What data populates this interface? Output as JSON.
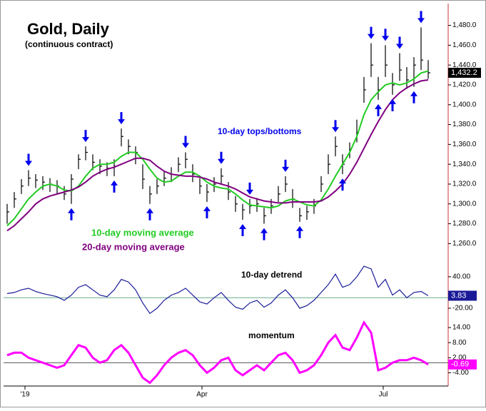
{
  "chart_data": [
    {
      "type": "ohlc",
      "title": "Gold, Daily",
      "subtitle": "(continuous contract)",
      "annotation": "10-day tops/bottoms",
      "high": [
        1300,
        1312,
        1325,
        1334,
        1330,
        1328,
        1326,
        1324,
        1318,
        1330,
        1350,
        1358,
        1350,
        1345,
        1342,
        1345,
        1376,
        1365,
        1358,
        1340,
        1318,
        1325,
        1333,
        1337,
        1347,
        1352,
        1340,
        1326,
        1320,
        1327,
        1336,
        1322,
        1308,
        1300,
        1305,
        1306,
        1296,
        1305,
        1318,
        1328,
        1315,
        1296,
        1298,
        1305,
        1328,
        1350,
        1368,
        1350,
        1362,
        1385,
        1428,
        1462,
        1428,
        1460,
        1432,
        1452,
        1438,
        1448,
        1478,
        1445
      ],
      "low": [
        1280,
        1296,
        1310,
        1318,
        1316,
        1314,
        1312,
        1310,
        1304,
        1300,
        1335,
        1344,
        1334,
        1330,
        1328,
        1328,
        1358,
        1350,
        1340,
        1315,
        1300,
        1310,
        1318,
        1322,
        1332,
        1336,
        1322,
        1310,
        1302,
        1312,
        1320,
        1304,
        1292,
        1284,
        1290,
        1292,
        1280,
        1290,
        1302,
        1312,
        1296,
        1282,
        1284,
        1290,
        1312,
        1330,
        1348,
        1330,
        1346,
        1362,
        1402,
        1428,
        1405,
        1428,
        1410,
        1424,
        1416,
        1418,
        1435,
        1426
      ],
      "close": [
        1292,
        1305,
        1318,
        1326,
        1324,
        1322,
        1320,
        1318,
        1310,
        1325,
        1345,
        1352,
        1342,
        1338,
        1336,
        1338,
        1368,
        1358,
        1352,
        1325,
        1310,
        1318,
        1326,
        1330,
        1340,
        1345,
        1330,
        1318,
        1312,
        1320,
        1328,
        1312,
        1300,
        1294,
        1298,
        1300,
        1288,
        1298,
        1310,
        1320,
        1305,
        1288,
        1292,
        1298,
        1320,
        1340,
        1358,
        1340,
        1355,
        1372,
        1415,
        1440,
        1415,
        1440,
        1420,
        1435,
        1425,
        1440,
        1445,
        1432.2
      ],
      "bar_color": "#000000",
      "series": [
        {
          "name": "10-day moving average",
          "color": "#22cc22",
          "values": [
            1278,
            1285,
            1295,
            1305,
            1312,
            1318,
            1320,
            1318,
            1314,
            1313,
            1318,
            1328,
            1336,
            1340,
            1340,
            1342,
            1348,
            1352,
            1352,
            1345,
            1335,
            1326,
            1322,
            1323,
            1328,
            1332,
            1332,
            1328,
            1322,
            1318,
            1316,
            1315,
            1310,
            1304,
            1299,
            1298,
            1297,
            1296,
            1298,
            1303,
            1305,
            1302,
            1299,
            1298,
            1304,
            1315,
            1328,
            1340,
            1352,
            1368,
            1390,
            1405,
            1413,
            1420,
            1422,
            1420,
            1422,
            1426,
            1432,
            1434
          ]
        },
        {
          "name": "20-day moving average",
          "color": "#800080",
          "values": [
            1273,
            1278,
            1285,
            1292,
            1300,
            1305,
            1308,
            1310,
            1312,
            1314,
            1317,
            1322,
            1328,
            1332,
            1335,
            1337,
            1340,
            1343,
            1346,
            1346,
            1344,
            1338,
            1333,
            1330,
            1329,
            1328,
            1328,
            1327,
            1325,
            1322,
            1320,
            1318,
            1315,
            1311,
            1307,
            1305,
            1303,
            1302,
            1301,
            1301,
            1302,
            1302,
            1302,
            1302,
            1303,
            1307,
            1313,
            1320,
            1330,
            1342,
            1356,
            1370,
            1383,
            1395,
            1405,
            1412,
            1417,
            1421,
            1424,
            1425
          ]
        }
      ],
      "tops": [
        3,
        11,
        16,
        25,
        30,
        34,
        39,
        46,
        51,
        53,
        55,
        58
      ],
      "bottoms": [
        9,
        15,
        20,
        28,
        33,
        36,
        41,
        47,
        52,
        54,
        57
      ],
      "arrow_color": "#0000ee",
      "last_value_label": "1,432.2",
      "xlim": [
        -0.5,
        61.8
      ],
      "ylim": [
        1243,
        1502
      ],
      "yticks": [
        {
          "value": 1260,
          "label": "1,260.0"
        },
        {
          "value": 1280,
          "label": "1,280.0"
        },
        {
          "value": 1300,
          "label": "1,300.0"
        },
        {
          "value": 1320,
          "label": "1,320.0"
        },
        {
          "value": 1340,
          "label": "1,340.0"
        },
        {
          "value": 1360,
          "label": "1,360.0"
        },
        {
          "value": 1380,
          "label": "1,380.0"
        },
        {
          "value": 1400,
          "label": "1,400.0"
        },
        {
          "value": 1420,
          "label": "1,420.0"
        },
        {
          "value": 1440,
          "label": "1,440.0"
        },
        {
          "value": 1460,
          "label": "1,460.0"
        },
        {
          "value": 1480,
          "label": "1,480.0"
        }
      ]
    },
    {
      "type": "line",
      "title": "10-day detrend",
      "color": "#1a1a99",
      "values": [
        8,
        10,
        15,
        18,
        12,
        8,
        5,
        2,
        -5,
        5,
        20,
        25,
        15,
        5,
        2,
        15,
        35,
        30,
        15,
        -10,
        -30,
        -20,
        -5,
        5,
        10,
        18,
        5,
        -8,
        -12,
        0,
        10,
        -5,
        -18,
        -22,
        -10,
        -5,
        -18,
        -10,
        5,
        15,
        0,
        -20,
        -15,
        -5,
        10,
        25,
        45,
        20,
        25,
        40,
        60,
        55,
        20,
        35,
        5,
        15,
        0,
        10,
        12,
        3.83
      ],
      "last_value_label": "3.83",
      "zero_color": "#66aa88",
      "xlim": [
        -0.5,
        61.8
      ],
      "ylim": [
        -35,
        67
      ],
      "yticks": [
        {
          "value": 40,
          "label": "40.00"
        },
        {
          "value": -20,
          "label": "-20.00"
        }
      ]
    },
    {
      "type": "line",
      "title": "momentum",
      "color": "#ff00ff",
      "values": [
        3,
        4,
        4,
        2,
        1,
        0,
        -1,
        -2,
        -1,
        3,
        7,
        6,
        2,
        0,
        1,
        5,
        7,
        4,
        -1,
        -6,
        -8,
        -5,
        -1,
        2,
        4,
        5,
        3,
        -1,
        -4,
        -2,
        1,
        2,
        -3,
        -5,
        -3,
        -1,
        -3,
        0,
        3,
        4,
        1,
        -4,
        -3,
        -1,
        3,
        8,
        11,
        6,
        5,
        10,
        16,
        12,
        -3,
        -2,
        0,
        1,
        1,
        2,
        1,
        -0.69
      ],
      "last_value_label": "-0.69",
      "zero_color": "#555555",
      "xlim": [
        -0.5,
        61.8
      ],
      "ylim": [
        -9,
        18
      ],
      "yticks": [
        {
          "value": 14,
          "label": "14.00"
        },
        {
          "value": 8,
          "label": "8.00"
        },
        {
          "value": 2,
          "label": "2.00"
        },
        {
          "value": -4,
          "label": "-4.00"
        }
      ],
      "xticks": [
        {
          "value": 2.5,
          "label": "'19"
        },
        {
          "value": 27.3,
          "label": "Apr"
        },
        {
          "value": 52.7,
          "label": "Jul"
        }
      ]
    }
  ]
}
